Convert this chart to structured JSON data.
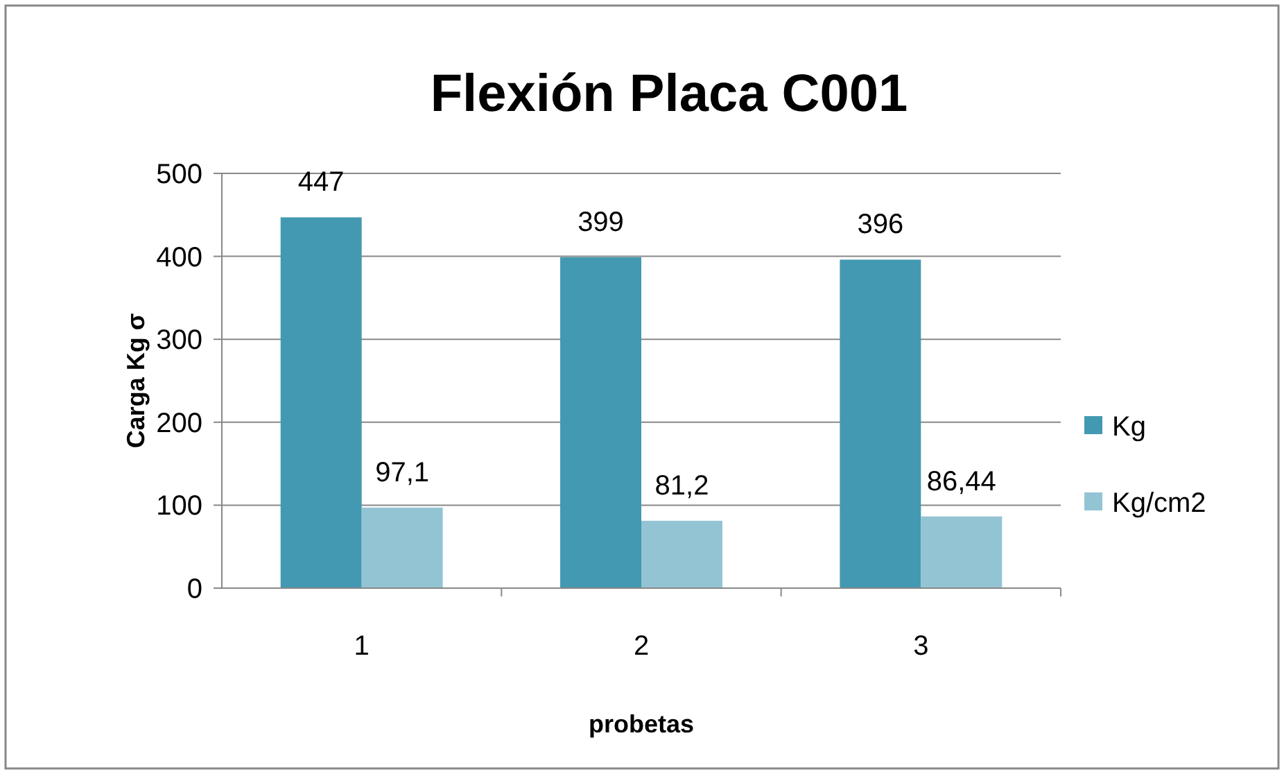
{
  "chart_data": {
    "type": "bar",
    "title": "Flexión Placa C001",
    "xlabel": "probetas",
    "ylabel": "Carga Kg σ",
    "categories": [
      "1",
      "2",
      "3"
    ],
    "series": [
      {
        "name": "Kg",
        "color": "#4399b1",
        "values": [
          447,
          399,
          396
        ],
        "value_labels": [
          "447",
          "399",
          "396"
        ]
      },
      {
        "name": "Kg/cm2",
        "color": "#93c4d4",
        "values": [
          97.1,
          81.2,
          86.44
        ],
        "value_labels": [
          "97,1",
          "81,2",
          "86,44"
        ]
      }
    ],
    "ylim": [
      0,
      500
    ],
    "yticks": [
      0,
      100,
      200,
      300,
      400,
      500
    ],
    "grid": "y",
    "legend": "right"
  }
}
